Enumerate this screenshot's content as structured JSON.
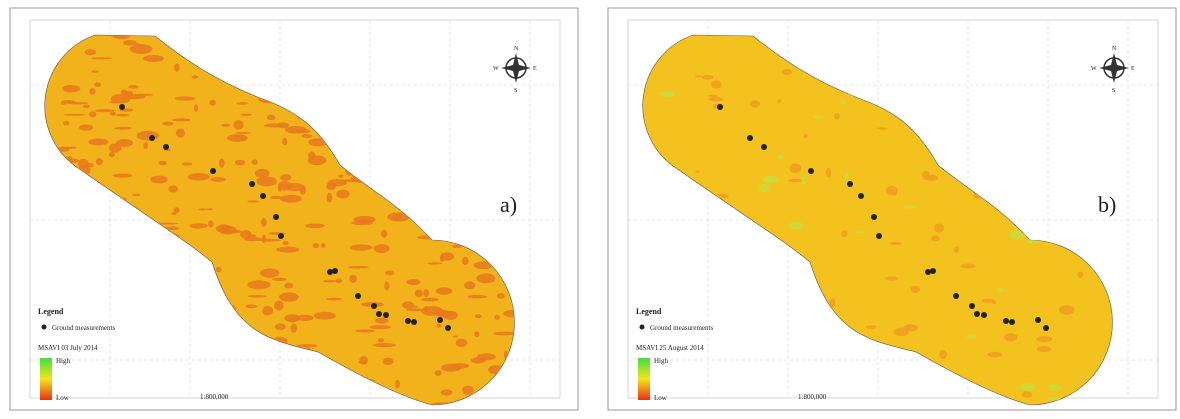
{
  "panels": [
    {
      "label": "a)",
      "legend": {
        "title": "Legend",
        "points": "Ground measurements",
        "layer": "MSAVI 03 July 2014",
        "high": "High",
        "low": "Low"
      },
      "scale": "1:800,000"
    },
    {
      "label": "b)",
      "legend": {
        "title": "Legend",
        "points": "Ground measurements",
        "layer": "MSAVI 25 August 2014",
        "high": "High",
        "low": "Low"
      },
      "scale": "1:800,000"
    }
  ],
  "compass": {
    "n": "N",
    "s": "S",
    "e": "E",
    "w": "W"
  }
}
